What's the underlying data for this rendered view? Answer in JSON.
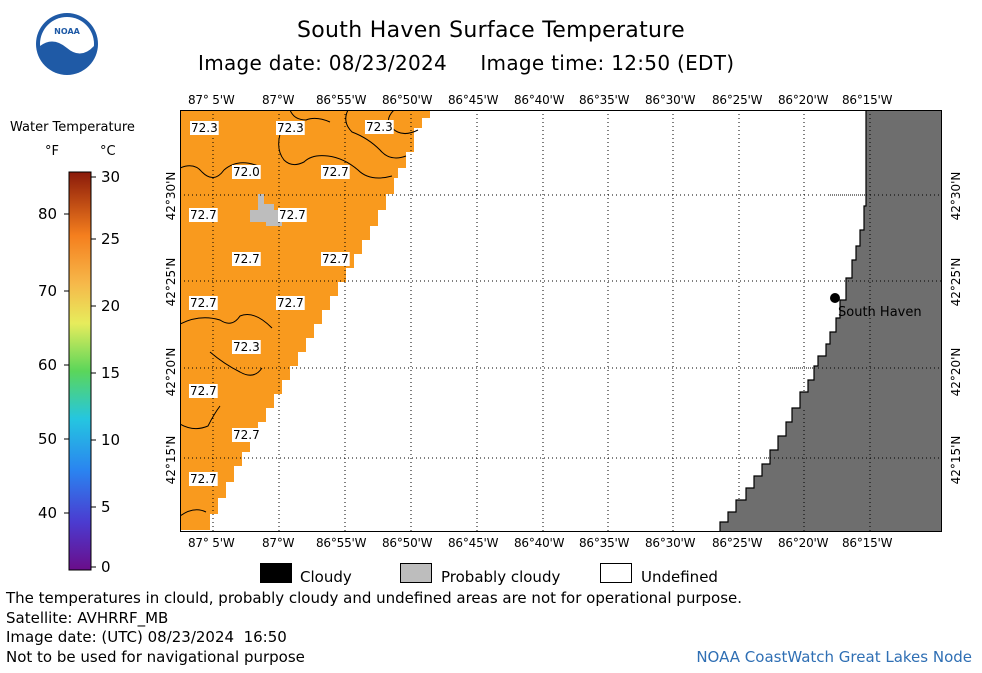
{
  "header": {
    "title": "South Haven Surface Temperature",
    "subtitle": "Image date: 08/23/2024     Image time: 12:50 (EDT)"
  },
  "logo": {
    "text": "NOAA",
    "icon": "noaa-logo-icon"
  },
  "colorbar": {
    "title": "Water Temperature",
    "unit_f": "°F",
    "unit_c": "°C",
    "f_ticks": [
      "80",
      "70",
      "60",
      "50",
      "40"
    ],
    "c_ticks": [
      "30",
      "25",
      "20",
      "15",
      "10",
      "5",
      "0"
    ]
  },
  "map": {
    "lon_labels": [
      "87° 5'W",
      "87°W",
      "86°55'W",
      "86°50'W",
      "86°45'W",
      "86°40'W",
      "86°35'W",
      "86°30'W",
      "86°25'W",
      "86°20'W",
      "86°15'W"
    ],
    "lat_labels": [
      "42°30'N",
      "42°25'N",
      "42°20'N",
      "42°15'N"
    ],
    "temps": [
      "72.3",
      "72.3",
      "72.3",
      "72.0",
      "72.7",
      "72.7",
      "72.7",
      "72.7",
      "72.7",
      "72.7",
      "72.7",
      "72.3",
      "72.7",
      "72.7",
      "72.7"
    ],
    "place": "South Haven",
    "colors": {
      "water": "#f99a1e",
      "land": "#6e6e6e",
      "cloud_probable": "#bdbdbd"
    }
  },
  "legend": {
    "cloudy": "Cloudy",
    "probably_cloudy": "Probably cloudy",
    "undefined": "Undefined"
  },
  "footer": {
    "disclaimer": "The temperatures in clould, probably cloudy and undefined areas are not for operational purpose.",
    "satellite": "Satellite: AVHRRF_MB",
    "utc": "Image date: (UTC) 08/23/2024  16:50",
    "nav": "Not to be used for navigational purpose",
    "credit": "NOAA CoastWatch Great Lakes Node"
  }
}
